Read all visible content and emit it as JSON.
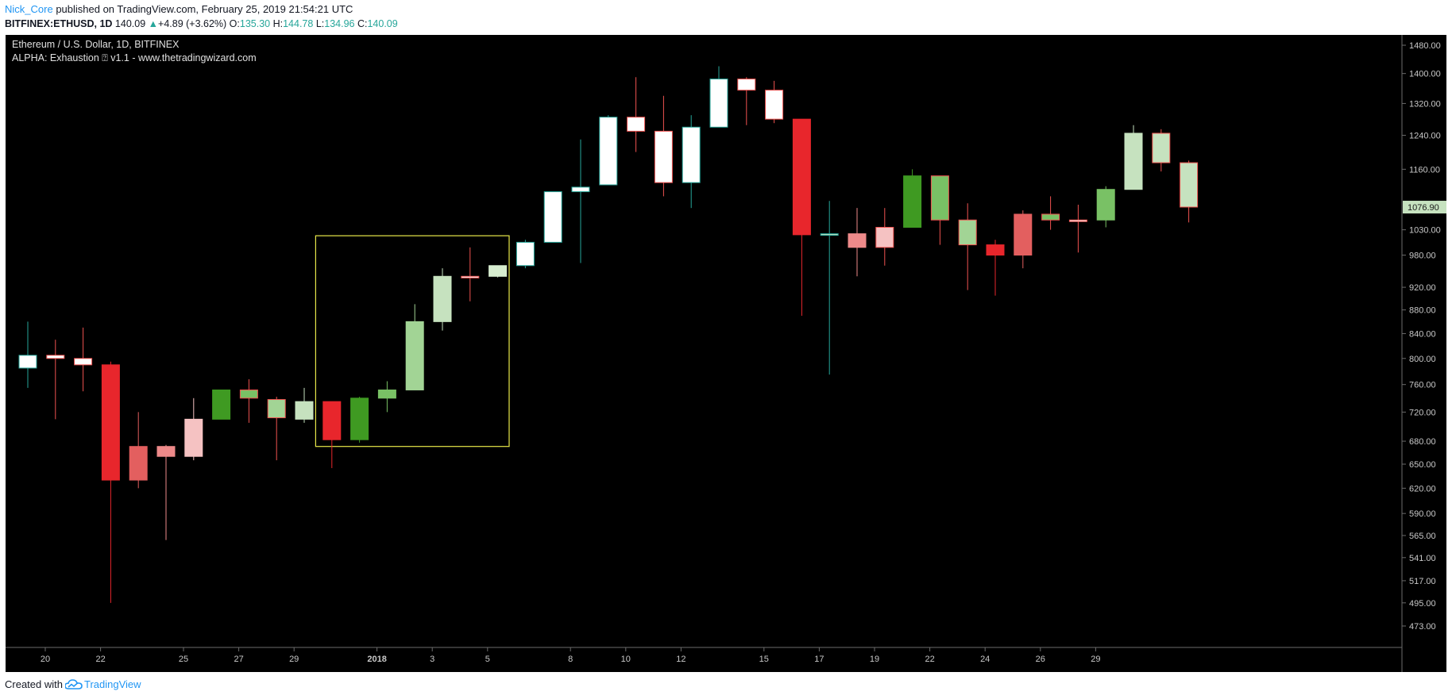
{
  "header": {
    "author": "Nick_Core",
    "published_text": "published on TradingView.com, February 25, 2019 21:54:21 UTC",
    "symbol": "BITFINEX:ETHUSD, 1D",
    "last_price": "140.09",
    "change_arrow": "▲",
    "change": "+4.89 (+3.62%)",
    "o_label": "O:",
    "o_value": "135.30",
    "h_label": "H:",
    "h_value": "144.78",
    "l_label": "L:",
    "l_value": "134.96",
    "c_label": "C:",
    "c_value": "140.09"
  },
  "legend": {
    "title": "Ethereum / U.S. Dollar, 1D, BITFINEX",
    "indicator": "ALPHA: Exhaustion ⍰ v1.1 - www.thetradingwizard.com"
  },
  "footer": {
    "created_with": "Created with",
    "brand": "TradingView"
  },
  "colors": {
    "background": "#000000",
    "axis_text": "#c8c8c8",
    "box": "#e8e84a",
    "price_tag_bg": "#c6e2bf"
  },
  "chart_data": {
    "type": "candlestick",
    "title": "Ethereum / U.S. Dollar, 1D, BITFINEX",
    "price_axis_labels": [
      "1480.00",
      "1400.00",
      "1320.00",
      "1240.00",
      "1160.00",
      "1076.90",
      "1030.00",
      "980.00",
      "920.00",
      "880.00",
      "840.00",
      "800.00",
      "760.00",
      "720.00",
      "680.00",
      "650.00",
      "620.00",
      "590.00",
      "565.00",
      "541.00",
      "517.00",
      "495.00",
      "473.00"
    ],
    "price_tag": "1076.90",
    "time_axis_labels": [
      {
        "label": "20",
        "index": 0
      },
      {
        "label": "22",
        "index": 2
      },
      {
        "label": "25",
        "index": 5
      },
      {
        "label": "27",
        "index": 7
      },
      {
        "label": "29",
        "index": 9
      },
      {
        "label": "2018",
        "index": 12
      },
      {
        "label": "3",
        "index": 14
      },
      {
        "label": "5",
        "index": 16
      },
      {
        "label": "8",
        "index": 19
      },
      {
        "label": "10",
        "index": 21
      },
      {
        "label": "12",
        "index": 23
      },
      {
        "label": "15",
        "index": 26
      },
      {
        "label": "17",
        "index": 28
      },
      {
        "label": "19",
        "index": 30
      },
      {
        "label": "22",
        "index": 32
      },
      {
        "label": "24",
        "index": 34
      },
      {
        "label": "26",
        "index": 36
      },
      {
        "label": "29",
        "index": 38
      }
    ],
    "candles": [
      {
        "o": 785,
        "h": 860,
        "l": 755,
        "c": 805,
        "color": "#ffffff",
        "border": "#26a69a"
      },
      {
        "o": 805,
        "h": 830,
        "l": 710,
        "c": 800,
        "color": "#ffffff",
        "border": "#ef5350"
      },
      {
        "o": 800,
        "h": 850,
        "l": 750,
        "c": 790,
        "color": "#ffffff",
        "border": "#ef5350"
      },
      {
        "o": 790,
        "h": 795,
        "l": 495,
        "c": 630,
        "color": "#e8262c",
        "border": "#e8262c"
      },
      {
        "o": 673,
        "h": 720,
        "l": 620,
        "c": 630,
        "color": "#e35f5f",
        "border": "#e35f5f"
      },
      {
        "o": 673,
        "h": 675,
        "l": 560,
        "c": 660,
        "color": "#ee8a8a",
        "border": "#ee8a8a"
      },
      {
        "o": 660,
        "h": 740,
        "l": 655,
        "c": 710,
        "color": "#f5c2c2",
        "border": "#f5c2c2"
      },
      {
        "o": 710,
        "h": 750,
        "l": 710,
        "c": 752,
        "color": "#3f9a22",
        "border": "#3f9a22"
      },
      {
        "o": 740,
        "h": 768,
        "l": 705,
        "c": 752,
        "color": "#79c165",
        "border": "#ef5350"
      },
      {
        "o": 712,
        "h": 742,
        "l": 655,
        "c": 738,
        "color": "#a2d495",
        "border": "#ef5350"
      },
      {
        "o": 710,
        "h": 755,
        "l": 705,
        "c": 735,
        "color": "#c6e2bf",
        "border": "#c6e2bf"
      },
      {
        "o": 682,
        "h": 735,
        "l": 645,
        "c": 735,
        "color": "#e8262c",
        "border": "#e8262c"
      },
      {
        "o": 682,
        "h": 742,
        "l": 678,
        "c": 740,
        "color": "#3f9a22",
        "border": "#3f9a22"
      },
      {
        "o": 740,
        "h": 765,
        "l": 720,
        "c": 752,
        "color": "#79c165",
        "border": "#79c165"
      },
      {
        "o": 752,
        "h": 890,
        "l": 752,
        "c": 860,
        "color": "#a2d495",
        "border": "#a2d495"
      },
      {
        "o": 860,
        "h": 955,
        "l": 845,
        "c": 940,
        "color": "#c6e2bf",
        "border": "#c6e2bf"
      },
      {
        "o": 940,
        "h": 995,
        "l": 895,
        "c": 940,
        "color": "#ffffff",
        "border": "#ef5350"
      },
      {
        "o": 940,
        "h": 960,
        "l": 938,
        "c": 960,
        "color": "#d7edd0",
        "border": "#d7edd0"
      },
      {
        "o": 960,
        "h": 1010,
        "l": 955,
        "c": 1005,
        "color": "#ffffff",
        "border": "#26a69a"
      },
      {
        "o": 1005,
        "h": 1110,
        "l": 1005,
        "c": 1110,
        "color": "#ffffff",
        "border": "#26a69a"
      },
      {
        "o": 1110,
        "h": 1230,
        "l": 965,
        "c": 1120,
        "color": "#ffffff",
        "border": "#26a69a"
      },
      {
        "o": 1125,
        "h": 1290,
        "l": 1125,
        "c": 1285,
        "color": "#ffffff",
        "border": "#26a69a"
      },
      {
        "o": 1285,
        "h": 1390,
        "l": 1200,
        "c": 1250,
        "color": "#ffffff",
        "border": "#ef5350"
      },
      {
        "o": 1250,
        "h": 1340,
        "l": 1100,
        "c": 1130,
        "color": "#ffffff",
        "border": "#ef5350"
      },
      {
        "o": 1130,
        "h": 1290,
        "l": 1075,
        "c": 1260,
        "color": "#ffffff",
        "border": "#26a69a"
      },
      {
        "o": 1260,
        "h": 1420,
        "l": 1260,
        "c": 1385,
        "color": "#ffffff",
        "border": "#26a69a"
      },
      {
        "o": 1385,
        "h": 1390,
        "l": 1265,
        "c": 1355,
        "color": "#ffffff",
        "border": "#ef5350"
      },
      {
        "o": 1355,
        "h": 1380,
        "l": 1270,
        "c": 1280,
        "color": "#ffffff",
        "border": "#ef5350"
      },
      {
        "o": 1280,
        "h": 1280,
        "l": 870,
        "c": 1020,
        "color": "#e8262c",
        "border": "#e8262c"
      },
      {
        "o": 1020,
        "h": 1090,
        "l": 775,
        "c": 1022,
        "color": "#c6e2bf",
        "border": "#26a69a"
      },
      {
        "o": 1022,
        "h": 1075,
        "l": 940,
        "c": 995,
        "color": "#ee8a8a",
        "border": "#ee8a8a"
      },
      {
        "o": 995,
        "h": 1075,
        "l": 960,
        "c": 1035,
        "color": "#f5c2c2",
        "border": "#ef5350"
      },
      {
        "o": 1035,
        "h": 1160,
        "l": 1035,
        "c": 1145,
        "color": "#3f9a22",
        "border": "#3f9a22"
      },
      {
        "o": 1145,
        "h": 1145,
        "l": 1000,
        "c": 1050,
        "color": "#79c165",
        "border": "#ef5350"
      },
      {
        "o": 1050,
        "h": 1085,
        "l": 915,
        "c": 1000,
        "color": "#a2d495",
        "border": "#ef5350"
      },
      {
        "o": 1000,
        "h": 1010,
        "l": 905,
        "c": 980,
        "color": "#e8262c",
        "border": "#e8262c"
      },
      {
        "o": 980,
        "h": 1070,
        "l": 955,
        "c": 1062,
        "color": "#e35f5f",
        "border": "#e35f5f"
      },
      {
        "o": 1050,
        "h": 1100,
        "l": 1030,
        "c": 1062,
        "color": "#79c165",
        "border": "#ef5350"
      },
      {
        "o": 1050,
        "h": 1082,
        "l": 985,
        "c": 1050,
        "color": "#ffffff",
        "border": "#ef5350"
      },
      {
        "o": 1050,
        "h": 1122,
        "l": 1035,
        "c": 1115,
        "color": "#79c165",
        "border": "#79c165"
      },
      {
        "o": 1115,
        "h": 1265,
        "l": 1115,
        "c": 1245,
        "color": "#c6e2bf",
        "border": "#c6e2bf"
      },
      {
        "o": 1245,
        "h": 1255,
        "l": 1155,
        "c": 1175,
        "color": "#c6e2bf",
        "border": "#ef5350"
      },
      {
        "o": 1175,
        "h": 1180,
        "l": 1045,
        "c": 1077,
        "color": "#c6e2bf",
        "border": "#ef5350"
      }
    ],
    "highlight_box": {
      "start_index": 11,
      "end_index": 17,
      "price_low": 673,
      "price_high": 1018
    }
  }
}
